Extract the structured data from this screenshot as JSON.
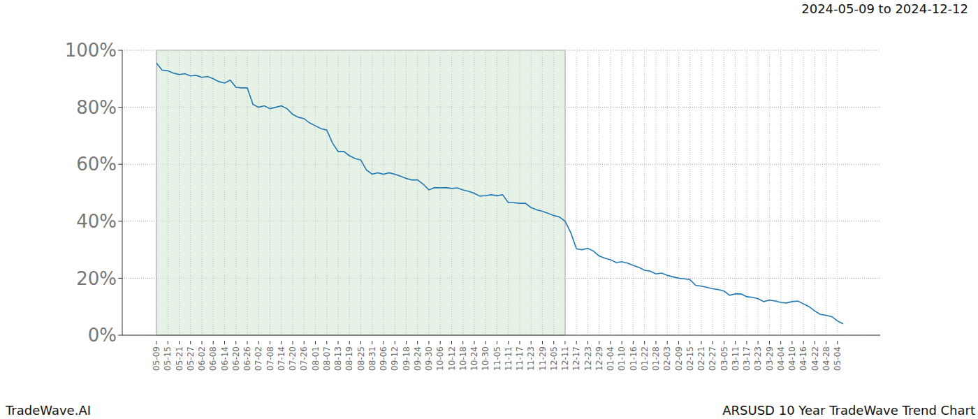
{
  "chart_data": {
    "type": "line",
    "title": "ARSUSD 10 Year TradeWave Trend Chart",
    "subtitle": "2024-05-09 to 2024-12-12",
    "annotations": [
      "TradeWave.AI"
    ],
    "categories": [
      "05-09",
      null,
      "05-15",
      null,
      "05-21",
      null,
      "05-27",
      null,
      "06-02",
      null,
      "06-08",
      null,
      "06-14",
      null,
      "06-20",
      null,
      "06-26",
      null,
      "07-02",
      null,
      "07-08",
      null,
      "07-14",
      null,
      "07-20",
      null,
      "07-26",
      null,
      "08-01",
      null,
      "08-07",
      null,
      "08-13",
      null,
      "08-19",
      null,
      "08-25",
      null,
      "08-31",
      null,
      "09-06",
      null,
      "09-12",
      null,
      "09-18",
      null,
      "09-24",
      null,
      "09-30",
      null,
      "10-06",
      null,
      "10-12",
      null,
      "10-18",
      null,
      "10-24",
      null,
      "10-30",
      null,
      "11-05",
      null,
      "11-11",
      null,
      "11-17",
      null,
      "11-23",
      null,
      "11-29",
      null,
      "12-05",
      null,
      "12-11",
      null,
      "12-17",
      null,
      "12-23",
      null,
      "12-29",
      null,
      "01-04",
      null,
      "01-10",
      null,
      "01-16",
      null,
      "01-22",
      null,
      "01-28",
      null,
      "02-03",
      null,
      "02-09",
      null,
      "02-15",
      null,
      "02-21",
      null,
      "02-27",
      null,
      "03-05",
      null,
      "03-11",
      null,
      "03-17",
      null,
      "03-23",
      null,
      "03-29",
      null,
      "04-04",
      null,
      "04-10",
      null,
      "04-16",
      null,
      "04-22",
      null,
      "04-28",
      null,
      "05-04",
      null
    ],
    "series": [
      {
        "name": "ARSUSD",
        "color": "#1f77b4",
        "values": [
          95.5,
          93,
          92.8,
          92,
          91.5,
          91.8,
          91,
          91.2,
          90.5,
          90.8,
          90,
          89,
          88.5,
          89.5,
          87,
          86.8,
          86.8,
          81,
          80,
          80.5,
          79.5,
          80,
          80.5,
          79.5,
          77.5,
          76.5,
          76,
          74.5,
          73.5,
          72.5,
          72,
          67.5,
          64.5,
          64.5,
          63,
          62,
          61.5,
          58,
          56.5,
          57,
          56.5,
          57,
          56.5,
          55.8,
          55,
          54.5,
          54.5,
          53,
          51,
          51.8,
          51.7,
          51.8,
          51.5,
          51.7,
          51,
          50.5,
          49.8,
          48.8,
          49,
          49.3,
          49,
          49.3,
          46.5,
          46.5,
          46.3,
          46.3,
          44.8,
          44,
          43.5,
          42.8,
          42,
          41.5,
          40,
          36,
          30.3,
          30,
          30.5,
          29.5,
          27.8,
          27,
          26.5,
          25.5,
          25.8,
          25.3,
          24.5,
          23.8,
          22.8,
          22.5,
          21.5,
          21.8,
          21,
          20.5,
          20,
          19.8,
          19.5,
          17.5,
          17.2,
          16.8,
          16.3,
          16,
          15.5,
          14,
          14.5,
          14.5,
          13.5,
          13.3,
          12.8,
          11.8,
          12.3,
          12,
          11.5,
          11.3,
          11.8,
          12,
          11,
          10,
          8.5,
          7.3,
          7,
          6.5,
          5,
          4
        ]
      }
    ],
    "shaded_range": [
      "05-09",
      "12-11"
    ],
    "ylim": [
      0,
      100
    ],
    "yticks": [
      {
        "value": 0,
        "label": "0%"
      },
      {
        "value": 20,
        "label": "20%"
      },
      {
        "value": 40,
        "label": "40%"
      },
      {
        "value": 60,
        "label": "60%"
      },
      {
        "value": 80,
        "label": "80%"
      },
      {
        "value": 100,
        "label": "100%"
      }
    ],
    "grid": true
  }
}
